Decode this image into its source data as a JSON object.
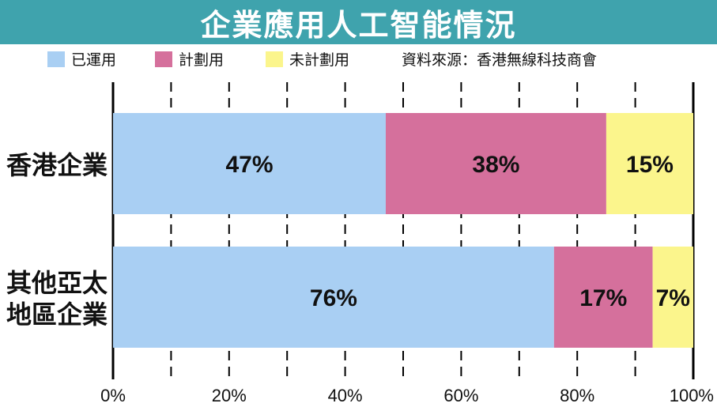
{
  "title": "企業應用人工智能情況",
  "source": "資料來源：香港無線科技商會",
  "colors": {
    "title_bg": "#3fa3ad",
    "used": "#a9cff3",
    "planned": "#d5709c",
    "not_planned": "#fbf58c"
  },
  "chart_data": {
    "type": "bar",
    "orientation": "horizontal",
    "stacked": true,
    "title": "企業應用人工智能情況",
    "categories": [
      "香港企業",
      "其他亞太地區企業"
    ],
    "category_lines": [
      [
        "香港企業"
      ],
      [
        "其他亞太",
        "地區企業"
      ]
    ],
    "series": [
      {
        "name": "已運用",
        "values": [
          47,
          76
        ],
        "labels": [
          "47%",
          "76%"
        ],
        "color": "#a9cff3"
      },
      {
        "name": "計劃用",
        "values": [
          38,
          17
        ],
        "labels": [
          "38%",
          "17%"
        ],
        "color": "#d5709c"
      },
      {
        "name": "未計劃用",
        "values": [
          15,
          7
        ],
        "labels": [
          "15%",
          "7%"
        ],
        "color": "#fbf58c"
      }
    ],
    "xlim": [
      0,
      100
    ],
    "xticks": [
      0,
      20,
      40,
      60,
      80,
      100
    ],
    "xtick_labels": [
      "0%",
      "20%",
      "40%",
      "60%",
      "80%",
      "100%"
    ],
    "grid": true,
    "legend_position": "top-left"
  }
}
